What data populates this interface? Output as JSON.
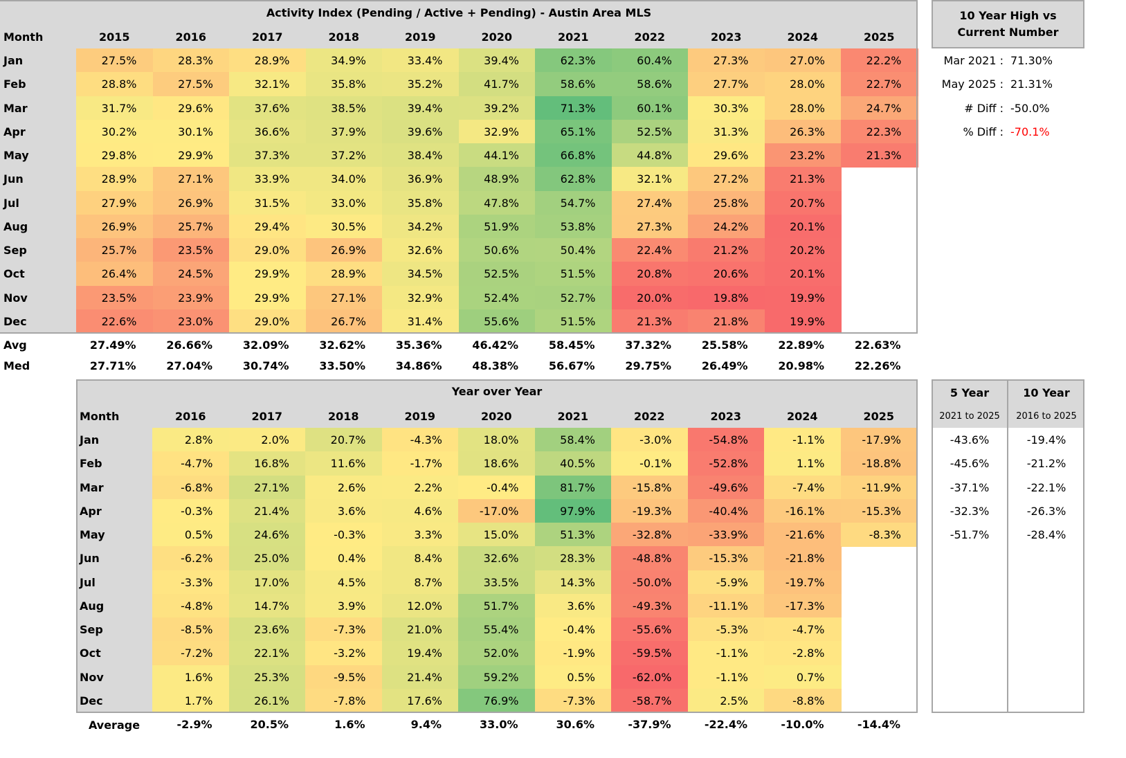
{
  "activity": {
    "title": "Activity Index (Pending / Active + Pending) - Austin Area MLS",
    "month_header": "Month",
    "years": [
      "2015",
      "2016",
      "2017",
      "2018",
      "2019",
      "2020",
      "2021",
      "2022",
      "2023",
      "2024",
      "2025"
    ],
    "months": [
      "Jan",
      "Feb",
      "Mar",
      "Apr",
      "May",
      "Jun",
      "Jul",
      "Aug",
      "Sep",
      "Oct",
      "Nov",
      "Dec"
    ],
    "rows": [
      [
        27.5,
        28.3,
        28.9,
        34.9,
        33.4,
        39.4,
        62.3,
        60.4,
        27.3,
        27.0,
        22.2
      ],
      [
        28.8,
        27.5,
        32.1,
        35.8,
        35.2,
        41.7,
        58.6,
        58.6,
        27.7,
        28.0,
        22.7
      ],
      [
        31.7,
        29.6,
        37.6,
        38.5,
        39.4,
        39.2,
        71.3,
        60.1,
        30.3,
        28.0,
        24.7
      ],
      [
        30.2,
        30.1,
        36.6,
        37.9,
        39.6,
        32.9,
        65.1,
        52.5,
        31.3,
        26.3,
        22.3
      ],
      [
        29.8,
        29.9,
        37.3,
        37.2,
        38.4,
        44.1,
        66.8,
        44.8,
        29.6,
        23.2,
        21.3
      ],
      [
        28.9,
        27.1,
        33.9,
        34.0,
        36.9,
        48.9,
        62.8,
        32.1,
        27.2,
        21.3,
        null
      ],
      [
        27.9,
        26.9,
        31.5,
        33.0,
        35.8,
        47.8,
        54.7,
        27.4,
        25.8,
        20.7,
        null
      ],
      [
        26.9,
        25.7,
        29.4,
        30.5,
        34.2,
        51.9,
        53.8,
        27.3,
        24.2,
        20.1,
        null
      ],
      [
        25.7,
        23.5,
        29.0,
        26.9,
        32.6,
        50.6,
        50.4,
        22.4,
        21.2,
        20.2,
        null
      ],
      [
        26.4,
        24.5,
        29.9,
        28.9,
        34.5,
        52.5,
        51.5,
        20.8,
        20.6,
        20.1,
        null
      ],
      [
        23.5,
        23.9,
        29.9,
        27.1,
        32.9,
        52.4,
        52.7,
        20.0,
        19.8,
        19.9,
        null
      ],
      [
        22.6,
        23.0,
        29.0,
        26.7,
        31.4,
        55.6,
        51.5,
        21.3,
        21.8,
        19.9,
        null
      ]
    ],
    "avg_label": "Avg",
    "avg": [
      "27.49%",
      "26.66%",
      "32.09%",
      "32.62%",
      "35.36%",
      "46.42%",
      "58.45%",
      "37.32%",
      "25.58%",
      "22.89%",
      "22.63%"
    ],
    "med_label": "Med",
    "med": [
      "27.71%",
      "27.04%",
      "30.74%",
      "33.50%",
      "34.86%",
      "48.38%",
      "56.67%",
      "29.75%",
      "26.49%",
      "20.98%",
      "22.26%"
    ]
  },
  "high_vs_current": {
    "title_line1": "10 Year High vs",
    "title_line2": "Current Number",
    "rows": [
      {
        "label": "Mar 2021 :",
        "value": "71.30%",
        "red": false
      },
      {
        "label": "May 2025 :",
        "value": "21.31%",
        "red": false
      },
      {
        "label": "# Diff :",
        "value": "-50.0%",
        "red": false
      },
      {
        "label": "% Diff :",
        "value": "-70.1%",
        "red": true
      }
    ]
  },
  "yoy": {
    "title": "Year over Year",
    "month_header": "Month",
    "years": [
      "2016",
      "2017",
      "2018",
      "2019",
      "2020",
      "2021",
      "2022",
      "2023",
      "2024",
      "2025"
    ],
    "months": [
      "Jan",
      "Feb",
      "Mar",
      "Apr",
      "May",
      "Jun",
      "Jul",
      "Aug",
      "Sep",
      "Oct",
      "Nov",
      "Dec"
    ],
    "rows": [
      [
        2.8,
        2.0,
        20.7,
        -4.3,
        18.0,
        58.4,
        -3.0,
        -54.8,
        -1.1,
        -17.9
      ],
      [
        -4.7,
        16.8,
        11.6,
        -1.7,
        18.6,
        40.5,
        -0.1,
        -52.8,
        1.1,
        -18.8
      ],
      [
        -6.8,
        27.1,
        2.6,
        2.2,
        -0.4,
        81.7,
        -15.8,
        -49.6,
        -7.4,
        -11.9
      ],
      [
        -0.3,
        21.4,
        3.6,
        4.6,
        -17.0,
        97.9,
        -19.3,
        -40.4,
        -16.1,
        -15.3
      ],
      [
        0.5,
        24.6,
        -0.3,
        3.3,
        15.0,
        51.3,
        -32.8,
        -33.9,
        -21.6,
        -8.3
      ],
      [
        -6.2,
        25.0,
        0.4,
        8.4,
        32.6,
        28.3,
        -48.8,
        -15.3,
        -21.8,
        null
      ],
      [
        -3.3,
        17.0,
        4.5,
        8.7,
        33.5,
        14.3,
        -50.0,
        -5.9,
        -19.7,
        null
      ],
      [
        -4.8,
        14.7,
        3.9,
        12.0,
        51.7,
        3.6,
        -49.3,
        -11.1,
        -17.3,
        null
      ],
      [
        -8.5,
        23.6,
        -7.3,
        21.0,
        55.4,
        -0.4,
        -55.6,
        -5.3,
        -4.7,
        null
      ],
      [
        -7.2,
        22.1,
        -3.2,
        19.4,
        52.0,
        -1.9,
        -59.5,
        -1.1,
        -2.8,
        null
      ],
      [
        1.6,
        25.3,
        -9.5,
        21.4,
        59.2,
        0.5,
        -62.0,
        -1.1,
        0.7,
        null
      ],
      [
        1.7,
        26.1,
        -7.8,
        17.6,
        76.9,
        -7.3,
        -58.7,
        2.5,
        -8.8,
        null
      ]
    ],
    "avg_label": "Average",
    "avg": [
      "-2.9%",
      "20.5%",
      "1.6%",
      "9.4%",
      "33.0%",
      "30.6%",
      "-37.9%",
      "-22.4%",
      "-10.0%",
      "-14.4%"
    ]
  },
  "five_ten": {
    "five_title": "5 Year",
    "five_sub": "2021 to 2025",
    "ten_title": "10 Year",
    "ten_sub": "2016 to 2025",
    "five": [
      "-43.6%",
      "-45.6%",
      "-37.1%",
      "-32.3%",
      "-51.7%"
    ],
    "ten": [
      "-19.4%",
      "-21.2%",
      "-22.1%",
      "-26.3%",
      "-28.4%"
    ]
  },
  "colors": {
    "header_gray": "#d9d9d9",
    "border_gray": "#a6a6a6",
    "scale_red": "#f8696b",
    "scale_yellow": "#ffeb84",
    "scale_green": "#63be7b",
    "diff_red": "#ff0000"
  }
}
